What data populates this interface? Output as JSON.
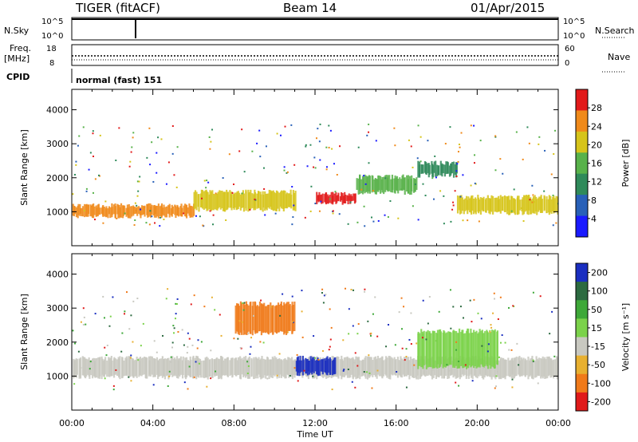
{
  "header": {
    "station": "TIGER (fitACF)",
    "beam": "Beam 14",
    "date": "01/Apr/2015"
  },
  "panels": {
    "nsky_label": "N.Sky",
    "nsearch_label": "N.Search",
    "freq_label_1": "Freq.",
    "freq_label_2": "[MHz]",
    "nave_label": "Nave",
    "cpid_label": "CPID",
    "cpid_value": "normal (fast) 151",
    "nsky_ticks": [
      "10^5",
      "10^0"
    ],
    "nsearch_ticks": [
      "10^5",
      "10^0"
    ],
    "freq_ticks": [
      "18",
      "8"
    ],
    "nave_ticks": [
      "60",
      "0"
    ]
  },
  "chart_data": [
    {
      "type": "heatmap",
      "name": "power",
      "xlabel": "",
      "ylabel": "Slant Range [km]",
      "x_ticks": [
        "00:00",
        "04:00",
        "08:00",
        "12:00",
        "16:00",
        "20:00",
        "00:00"
      ],
      "y_ticks": [
        1000,
        2000,
        3000,
        4000
      ],
      "colorbar_label": "Power [dB]",
      "colorbar_ticks": [
        4,
        8,
        12,
        16,
        20,
        24,
        28
      ],
      "colors": [
        "#1a1aff",
        "#2860b8",
        "#2f8a5a",
        "#58b24a",
        "#d6c41a",
        "#f08a1a",
        "#e21a1a"
      ],
      "bands": [
        {
          "start_h": 0,
          "end_h": 6,
          "range_start_km": 800,
          "range_end_km": 1250,
          "level": 5
        },
        {
          "start_h": 6,
          "end_h": 11,
          "range_start_km": 1000,
          "range_end_km": 1650,
          "level": 4
        },
        {
          "start_h": 12,
          "end_h": 14,
          "range_start_km": 1200,
          "range_end_km": 1600,
          "level": 6
        },
        {
          "start_h": 14,
          "end_h": 17,
          "range_start_km": 1500,
          "range_end_km": 2100,
          "level": 3
        },
        {
          "start_h": 17,
          "end_h": 19,
          "range_start_km": 2000,
          "range_end_km": 2500,
          "level": 2
        },
        {
          "start_h": 19,
          "end_h": 24,
          "range_start_km": 900,
          "range_end_km": 1500,
          "level": 4
        }
      ]
    },
    {
      "type": "heatmap",
      "name": "velocity",
      "xlabel": "Time UT",
      "ylabel": "Slant Range [km]",
      "x_ticks": [
        "00:00",
        "04:00",
        "08:00",
        "12:00",
        "16:00",
        "20:00",
        "00:00"
      ],
      "y_ticks": [
        1000,
        2000,
        3000,
        4000
      ],
      "colorbar_label": "Velocity [m s⁻¹]",
      "colorbar_ticks": [
        200,
        100,
        50,
        15,
        -15,
        -50,
        -100,
        -200
      ],
      "colors": [
        "#1a2ec0",
        "#2c6a40",
        "#3ea838",
        "#7bd24a",
        "#c8c8c0",
        "#e8b030",
        "#f07a1a",
        "#e01a1a"
      ],
      "bands": [
        {
          "start_h": 0,
          "end_h": 24,
          "range_start_km": 900,
          "range_end_km": 1600,
          "level": 4
        },
        {
          "start_h": 11,
          "end_h": 13,
          "range_start_km": 1000,
          "range_end_km": 1600,
          "level": 0
        },
        {
          "start_h": 17,
          "end_h": 21,
          "range_start_km": 1200,
          "range_end_km": 2400,
          "level": 3
        },
        {
          "start_h": 8,
          "end_h": 11,
          "range_start_km": 2200,
          "range_end_km": 3200,
          "level": 6
        }
      ]
    }
  ]
}
